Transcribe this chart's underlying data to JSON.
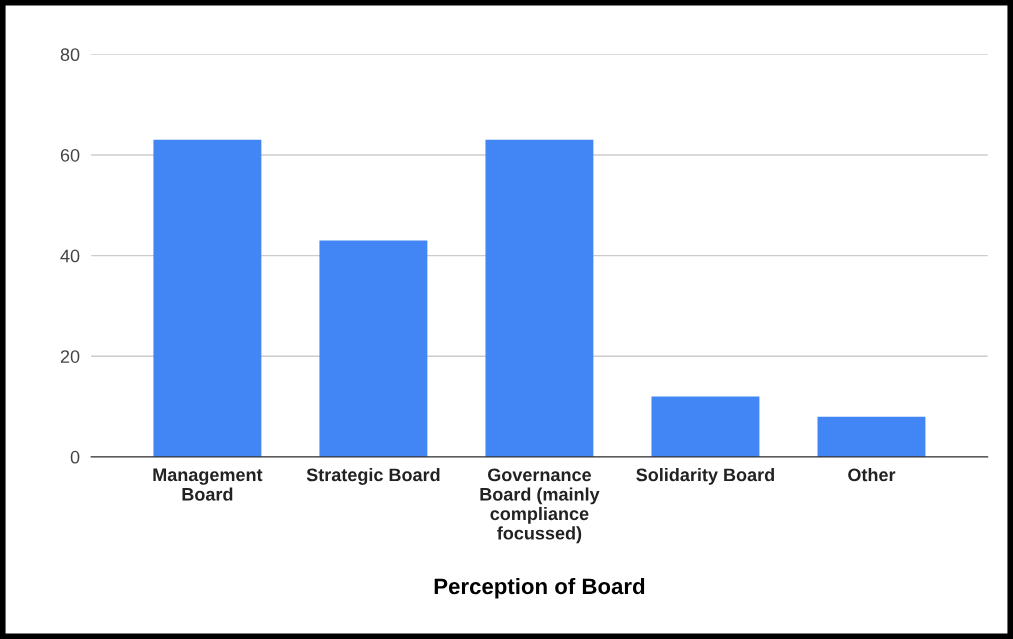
{
  "chart_data": {
    "type": "bar",
    "xlabel": "Perception of Board",
    "categories": [
      "Management\nBoard",
      "Strategic Board",
      "Governance\nBoard (mainly\ncompliance\nfocussed)",
      "Solidarity Board",
      "Other"
    ],
    "values": [
      63,
      43,
      63,
      12,
      8
    ],
    "color": "#4285f4",
    "ylim": [
      0,
      80
    ],
    "yticks": [
      0,
      20,
      40,
      60,
      80
    ],
    "grid": "y"
  }
}
